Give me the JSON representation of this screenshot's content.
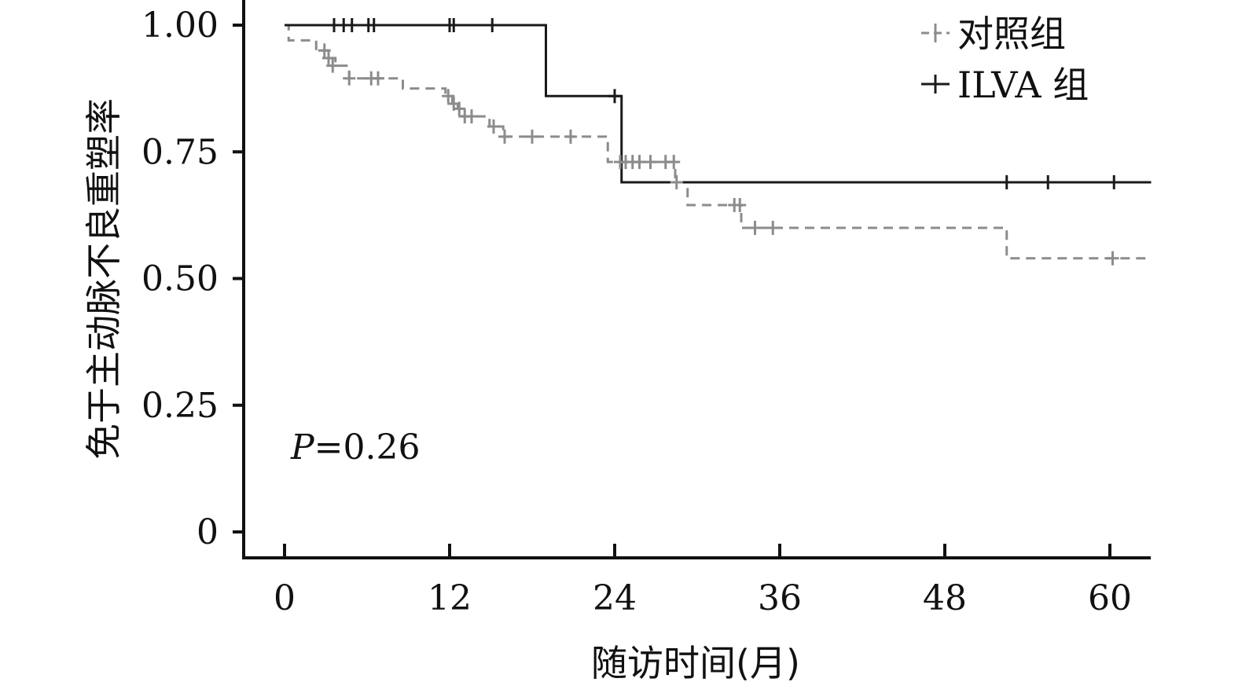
{
  "chart_data": {
    "type": "line",
    "subtype": "kaplan-meier",
    "title": "",
    "xlabel": "随访时间(月)",
    "ylabel": "免于主动脉不良重塑率",
    "xlim": [
      0,
      63
    ],
    "ylim": [
      0,
      1
    ],
    "xticks": [
      0,
      12,
      24,
      36,
      48,
      60
    ],
    "xtick_labels": [
      "0",
      "12",
      "24",
      "36",
      "48",
      "60"
    ],
    "yticks": [
      0,
      0.25,
      0.5,
      0.75,
      1.0
    ],
    "ytick_labels": [
      "0",
      "0.25",
      "0.50",
      "0.75",
      "1.00"
    ],
    "grid": false,
    "legend_position": "top-right",
    "annotation": {
      "italic": "P",
      "rest": "=0.26"
    },
    "series": [
      {
        "name": "对照组",
        "color": "#8c8c8c",
        "line_style": "dashed",
        "steps": [
          [
            0,
            1.0
          ],
          [
            0.3,
            0.97
          ],
          [
            2.3,
            0.95
          ],
          [
            3.2,
            0.935
          ],
          [
            3.7,
            0.92
          ],
          [
            4.7,
            0.895
          ],
          [
            8.6,
            0.875
          ],
          [
            11.7,
            0.86
          ],
          [
            12.2,
            0.845
          ],
          [
            12.6,
            0.835
          ],
          [
            12.9,
            0.82
          ],
          [
            14.9,
            0.8
          ],
          [
            15.9,
            0.78
          ],
          [
            23.5,
            0.73
          ],
          [
            28.4,
            0.69
          ],
          [
            29.3,
            0.645
          ],
          [
            33.2,
            0.6
          ],
          [
            52.5,
            0.54
          ],
          [
            63,
            0.54
          ]
        ],
        "censored": [
          [
            2.9,
            0.95
          ],
          [
            3.2,
            0.935
          ],
          [
            3.5,
            0.92
          ],
          [
            4.7,
            0.895
          ],
          [
            6.3,
            0.895
          ],
          [
            6.8,
            0.895
          ],
          [
            11.9,
            0.86
          ],
          [
            12.3,
            0.845
          ],
          [
            12.7,
            0.835
          ],
          [
            13.1,
            0.82
          ],
          [
            13.6,
            0.82
          ],
          [
            15.2,
            0.8
          ],
          [
            16.0,
            0.78
          ],
          [
            18.0,
            0.78
          ],
          [
            20.8,
            0.78
          ],
          [
            24.4,
            0.73
          ],
          [
            24.8,
            0.73
          ],
          [
            25.3,
            0.73
          ],
          [
            25.8,
            0.73
          ],
          [
            26.6,
            0.73
          ],
          [
            27.7,
            0.73
          ],
          [
            28.3,
            0.73
          ],
          [
            28.5,
            0.69
          ],
          [
            32.7,
            0.645
          ],
          [
            33.1,
            0.645
          ],
          [
            34.2,
            0.6
          ],
          [
            35.5,
            0.6
          ],
          [
            60.2,
            0.54
          ]
        ]
      },
      {
        "name": "ILVA 组",
        "color": "#1a1a1a",
        "line_style": "solid",
        "steps": [
          [
            0,
            1.0
          ],
          [
            19.0,
            0.86
          ],
          [
            24.5,
            0.69
          ],
          [
            63,
            0.69
          ]
        ],
        "censored": [
          [
            3.6,
            1.0
          ],
          [
            4.3,
            1.0
          ],
          [
            4.9,
            1.0
          ],
          [
            6.1,
            1.0
          ],
          [
            6.5,
            1.0
          ],
          [
            12.0,
            1.0
          ],
          [
            12.3,
            1.0
          ],
          [
            15.1,
            1.0
          ],
          [
            24.0,
            0.86
          ],
          [
            52.5,
            0.69
          ],
          [
            55.5,
            0.69
          ],
          [
            60.3,
            0.69
          ]
        ]
      }
    ]
  }
}
